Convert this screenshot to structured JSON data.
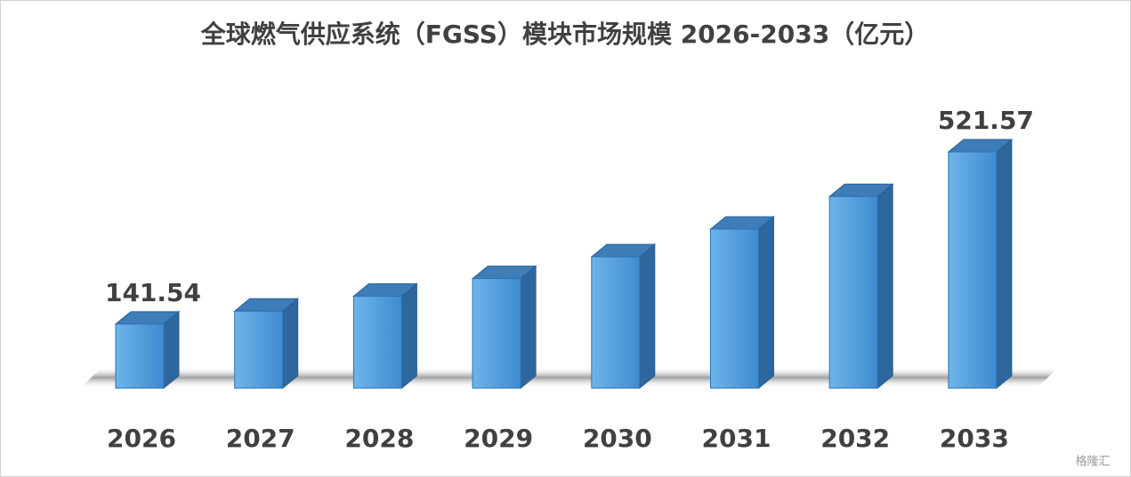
{
  "chart_data": {
    "type": "bar3d",
    "title": "全球燃气供应系统（FGSS）模块市场规模 2026-2033（亿元）",
    "categories": [
      "2026",
      "2027",
      "2028",
      "2029",
      "2030",
      "2031",
      "2032",
      "2033"
    ],
    "values": [
      141.54,
      170,
      203,
      242,
      290,
      351,
      423,
      521.57
    ],
    "value_labels": [
      "141.54",
      null,
      null,
      null,
      null,
      null,
      null,
      "521.57"
    ],
    "color": "#4f9ad8",
    "watermark": "格隆汇"
  }
}
